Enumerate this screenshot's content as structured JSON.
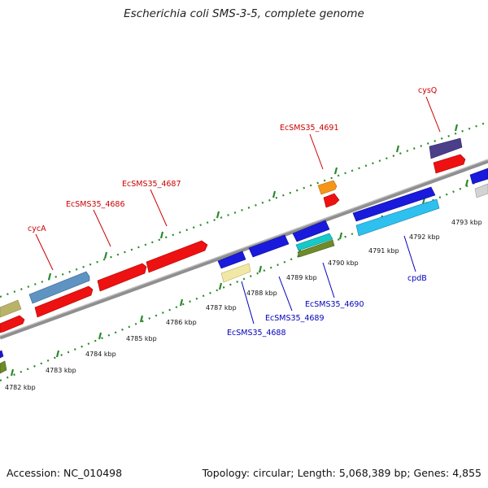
{
  "title": "Escherichia coli SMS-3-5, complete genome",
  "accession": "Accession: NC_010498",
  "summary": "Topology: circular; Length: 5,068,389 bp; Genes: 4,855",
  "colors": {
    "forward_label": "#cc0000",
    "reverse_label": "#0000bb",
    "backbone": "#8a8a8a",
    "tick": "#2a8a2a"
  },
  "ticks": [
    {
      "label": "4782 kbp",
      "kbp": 4782
    },
    {
      "label": "4783 kbp",
      "kbp": 4783
    },
    {
      "label": "4784 kbp",
      "kbp": 4784
    },
    {
      "label": "4785 kbp",
      "kbp": 4785
    },
    {
      "label": "4786 kbp",
      "kbp": 4786
    },
    {
      "label": "4787 kbp",
      "kbp": 4787
    },
    {
      "label": "4788 kbp",
      "kbp": 4788
    },
    {
      "label": "4789 kbp",
      "kbp": 4789
    },
    {
      "label": "4790 kbp",
      "kbp": 4790
    },
    {
      "label": "4791 kbp",
      "kbp": 4791
    },
    {
      "label": "4792 kbp",
      "kbp": 4792
    },
    {
      "label": "4793 kbp",
      "kbp": 4793
    }
  ],
  "gene_labels_forward": [
    {
      "text": "cycA"
    },
    {
      "text": "EcSMS35_4686"
    },
    {
      "text": "EcSMS35_4687"
    },
    {
      "text": "EcSMS35_4691"
    },
    {
      "text": "cysQ"
    }
  ],
  "gene_labels_reverse": [
    {
      "text": "EcSMS35_4688"
    },
    {
      "text": "EcSMS35_4689"
    },
    {
      "text": "EcSMS35_4690"
    },
    {
      "text": "cpdB"
    }
  ]
}
